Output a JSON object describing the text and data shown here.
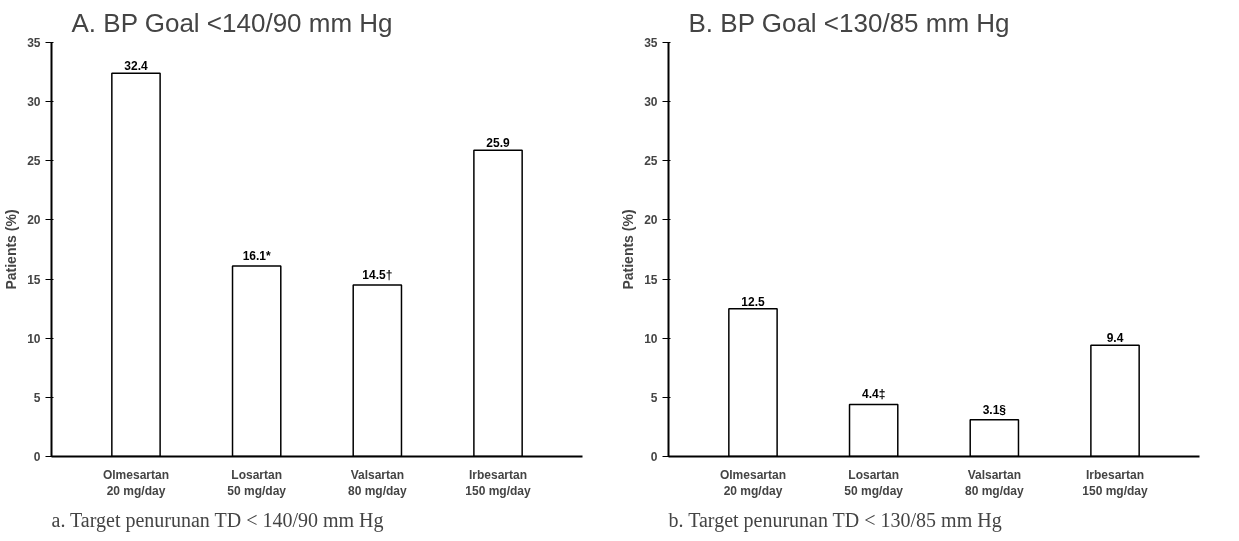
{
  "chart_data": [
    {
      "type": "bar",
      "title": "A. BP Goal <140/90 mm Hg",
      "ylabel": "Patients (%)",
      "categories": [
        "Olmesartan\n20 mg/day",
        "Losartan\n50 mg/day",
        "Valsartan\n80 mg/day",
        "Irbesartan\n150 mg/day"
      ],
      "values": [
        32.4,
        16.1,
        14.5,
        25.9
      ],
      "value_labels": [
        "32.4",
        "16.1*",
        "14.5†",
        "25.9"
      ],
      "color": "#ffffff",
      "ylim": [
        0,
        35
      ],
      "yticks": [
        0,
        5,
        10,
        15,
        20,
        25,
        30,
        35
      ],
      "annotations": [
        "a.   Target penurunan TD < 140/90 mm Hg"
      ]
    },
    {
      "type": "bar",
      "title": "B. BP Goal <130/85 mm Hg",
      "ylabel": "Patients (%)",
      "categories": [
        "Olmesartan\n20 mg/day",
        "Losartan\n50 mg/day",
        "Valsartan\n80 mg/day",
        "Irbesartan\n150 mg/day"
      ],
      "values": [
        12.5,
        4.4,
        3.1,
        9.4
      ],
      "value_labels": [
        "12.5",
        "4.4‡",
        "3.1§",
        "9.4"
      ],
      "color": "#ffffff",
      "ylim": [
        0,
        35
      ],
      "yticks": [
        0,
        5,
        10,
        15,
        20,
        25,
        30,
        35
      ],
      "annotations": [
        "b.   Target penurunan TD < 130/85 mm Hg"
      ]
    }
  ]
}
